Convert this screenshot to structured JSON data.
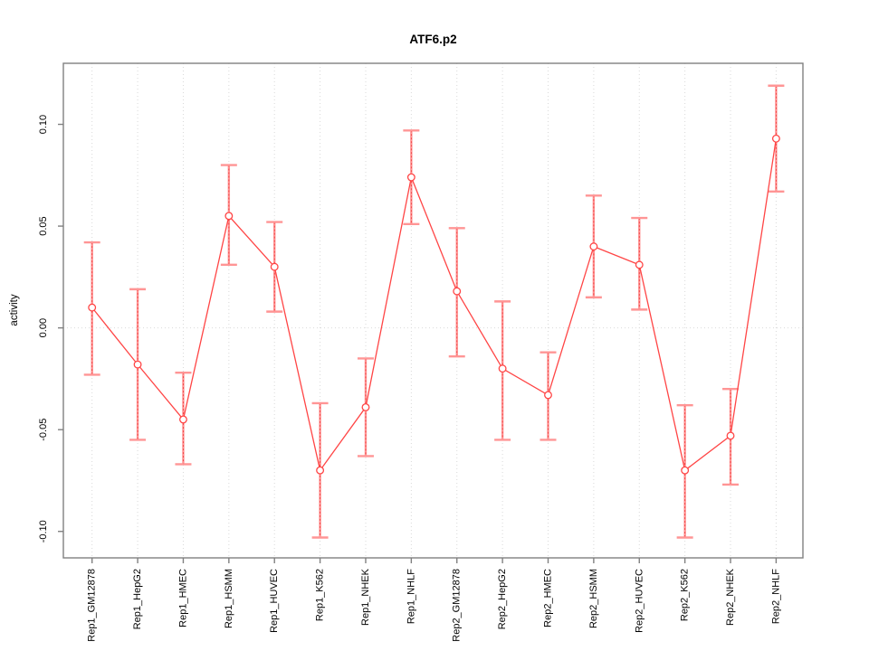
{
  "figure": {
    "background": "#ffffff"
  },
  "chart_data": {
    "type": "line",
    "title": "ATF6.p2",
    "xlabel": "",
    "ylabel": "activity",
    "legend": "none",
    "grid": {
      "vertical_dotted_per_category": true,
      "horizontal_zero_line_dotted": true
    },
    "categories": [
      "Rep1_GM12878",
      "Rep1_HepG2",
      "Rep1_HMEC",
      "Rep1_HSMM",
      "Rep1_HUVEC",
      "Rep1_K562",
      "Rep1_NHEK",
      "Rep1_NHLF",
      "Rep2_GM12878",
      "Rep2_HepG2",
      "Rep2_HMEC",
      "Rep2_HSMM",
      "Rep2_HUVEC",
      "Rep2_K562",
      "Rep2_NHEK",
      "Rep2_NHLF"
    ],
    "series": [
      {
        "name": "activity",
        "values": [
          0.01,
          -0.018,
          -0.045,
          0.055,
          0.03,
          -0.07,
          -0.039,
          0.074,
          0.018,
          -0.02,
          -0.033,
          0.04,
          0.031,
          -0.07,
          -0.053,
          0.093
        ],
        "upper": [
          0.042,
          0.019,
          -0.022,
          0.08,
          0.052,
          -0.037,
          -0.015,
          0.097,
          0.049,
          0.013,
          -0.012,
          0.065,
          0.054,
          -0.038,
          -0.03,
          0.119
        ],
        "lower": [
          -0.023,
          -0.055,
          -0.067,
          0.031,
          0.008,
          -0.103,
          -0.063,
          0.051,
          -0.014,
          -0.055,
          -0.055,
          0.015,
          0.009,
          -0.103,
          -0.077,
          0.067
        ]
      }
    ],
    "yticks": [
      -0.1,
      -0.05,
      0.0,
      0.05,
      0.1
    ],
    "ytick_labels": [
      "-0.10",
      "-0.05",
      "0.00",
      "0.05",
      "0.10"
    ],
    "ylim": [
      -0.113,
      0.13
    ],
    "colors": {
      "point_and_line": "#ff4545",
      "error_bar": "#ff9595",
      "error_bar_core": "#ee3535",
      "grid": "#d9d9d9",
      "axis": "#808080",
      "text": "#000000"
    }
  }
}
